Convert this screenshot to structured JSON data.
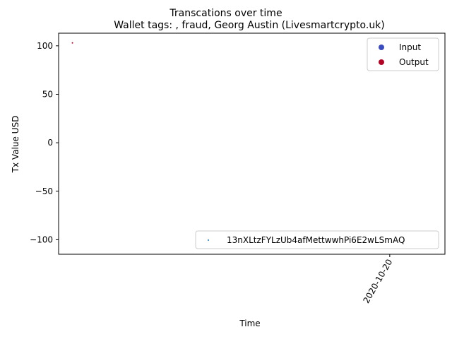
{
  "chart_data": {
    "type": "scatter",
    "suptitle": "Transcations over time",
    "title": "Wallet tags: , fraud, Georg Austin (Livesmartcrypto.uk)",
    "xlabel": "Time",
    "ylabel": "Tx Value USD",
    "ylim": [
      -115,
      113
    ],
    "yticks": [
      100,
      50,
      0,
      -50,
      -100
    ],
    "ytick_labels": [
      "100",
      "50",
      "0",
      "−50",
      "−100"
    ],
    "xticks": [
      {
        "date": "2020-10-20",
        "label": "2020-10-20"
      }
    ],
    "xlim": [
      "2020-10-19T00:00",
      "2020-10-20T04:00"
    ],
    "grid": false,
    "series": [
      {
        "name": "Output",
        "color": "#b40426",
        "points": [
          {
            "x": "2020-10-19T01:00",
            "y": 103
          }
        ]
      }
    ],
    "legend": {
      "placement": "upper right",
      "entries": [
        {
          "label": "Input",
          "color": "#3b4cc0"
        },
        {
          "label": "Output",
          "color": "#b40426"
        }
      ]
    },
    "address_legend": {
      "placement": "lower right",
      "entries": [
        {
          "label": "13nXLtzFYLzUb4afMettwwhPi6E2wLSmAQ",
          "color": "#1f77b4"
        }
      ]
    }
  }
}
